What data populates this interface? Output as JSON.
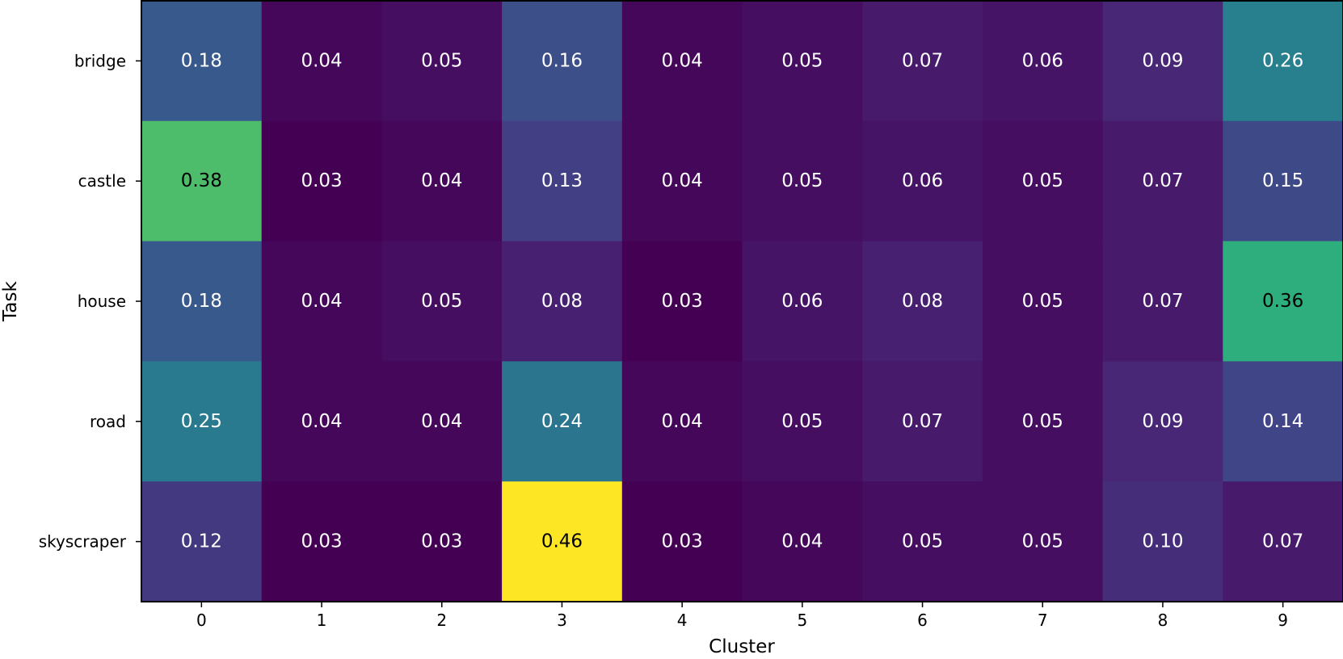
{
  "chart_data": {
    "type": "heatmap",
    "title": "",
    "xlabel": "Cluster",
    "ylabel": "Task",
    "x_categories": [
      "0",
      "1",
      "2",
      "3",
      "4",
      "5",
      "6",
      "7",
      "8",
      "9"
    ],
    "y_categories": [
      "bridge",
      "castle",
      "house",
      "road",
      "skyscraper"
    ],
    "values": [
      [
        0.18,
        0.04,
        0.05,
        0.16,
        0.04,
        0.05,
        0.07,
        0.06,
        0.09,
        0.26
      ],
      [
        0.38,
        0.03,
        0.04,
        0.13,
        0.04,
        0.05,
        0.06,
        0.05,
        0.07,
        0.15
      ],
      [
        0.18,
        0.04,
        0.05,
        0.08,
        0.03,
        0.06,
        0.08,
        0.05,
        0.07,
        0.36
      ],
      [
        0.25,
        0.04,
        0.04,
        0.24,
        0.04,
        0.05,
        0.07,
        0.05,
        0.09,
        0.14
      ],
      [
        0.12,
        0.03,
        0.03,
        0.46,
        0.03,
        0.04,
        0.05,
        0.05,
        0.1,
        0.07
      ]
    ],
    "value_labels": [
      [
        "0.18",
        "0.04",
        "0.05",
        "0.16",
        "0.04",
        "0.05",
        "0.07",
        "0.06",
        "0.09",
        "0.26"
      ],
      [
        "0.38",
        "0.03",
        "0.04",
        "0.13",
        "0.04",
        "0.05",
        "0.06",
        "0.05",
        "0.07",
        "0.15"
      ],
      [
        "0.18",
        "0.04",
        "0.05",
        "0.08",
        "0.03",
        "0.06",
        "0.08",
        "0.05",
        "0.07",
        "0.36"
      ],
      [
        "0.25",
        "0.04",
        "0.04",
        "0.24",
        "0.04",
        "0.05",
        "0.07",
        "0.05",
        "0.09",
        "0.14"
      ],
      [
        "0.12",
        "0.03",
        "0.03",
        "0.46",
        "0.03",
        "0.04",
        "0.05",
        "0.05",
        "0.10",
        "0.07"
      ]
    ],
    "colormap": "viridis",
    "vmin": 0.03,
    "vmax": 0.46,
    "grid": false
  }
}
